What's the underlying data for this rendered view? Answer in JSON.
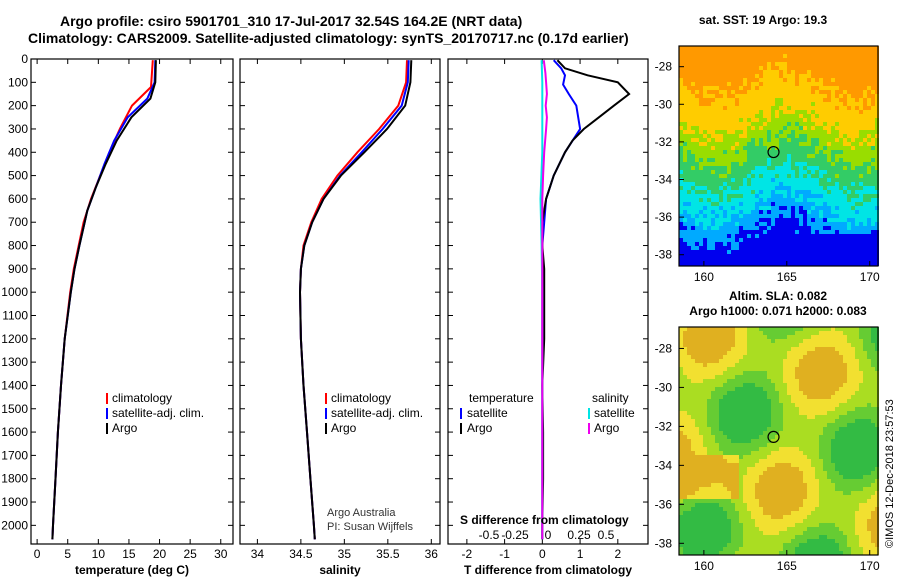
{
  "header": {
    "line1": "Argo profile: csiro 5901701_310 17-Jul-2017 32.54S 164.2E (NRT data)",
    "line2": "Climatology: CARS2009. Satellite-adjusted climatology: synTS_20170717.nc (0.17d earlier)"
  },
  "credit": "©IMOS 12-Dec-2018 23:57:53",
  "colors": {
    "climatology": "#ff0000",
    "satellite": "#0000ff",
    "argo": "#000000",
    "sat_salinity": "#00e5e5",
    "argo_salinity": "#ee00ee"
  },
  "chart_data": [
    {
      "type": "line",
      "name": "temperature",
      "xlabel": "temperature (deg C)",
      "xlim": [
        -1,
        32
      ],
      "xticks": [
        0,
        5,
        10,
        15,
        20,
        25,
        30
      ],
      "xticklabels": [
        "0",
        "5",
        "10",
        "15",
        "20",
        "25",
        "30"
      ],
      "ylim": [
        2080,
        0
      ],
      "yticks": [
        0,
        100,
        200,
        300,
        400,
        500,
        600,
        700,
        800,
        900,
        1000,
        1100,
        1200,
        1300,
        1400,
        1500,
        1600,
        1700,
        1800,
        1900,
        2000
      ],
      "legend": [
        "climatology",
        "satellite-adj. clim.",
        "Argo"
      ],
      "series": [
        {
          "name": "climatology",
          "color": "#ff0000",
          "depth": [
            5,
            120,
            200,
            300,
            400,
            500,
            600,
            700,
            800,
            900,
            1000,
            1200,
            1400,
            1600,
            1800,
            2000,
            2060
          ],
          "values": [
            18.9,
            18.6,
            15.5,
            13.5,
            11.8,
            10.3,
            8.8,
            7.6,
            6.8,
            6.0,
            5.4,
            4.5,
            3.9,
            3.4,
            3.0,
            2.6,
            2.5
          ]
        },
        {
          "name": "satellite-adj. clim.",
          "color": "#0000ff",
          "depth": [
            5,
            100,
            170,
            250,
            350,
            450,
            550,
            650,
            800,
            900,
            1000,
            1200,
            1400,
            1600,
            1800,
            2000,
            2060
          ],
          "values": [
            19.3,
            19.2,
            18.0,
            14.8,
            12.6,
            11.0,
            9.6,
            8.2,
            6.9,
            6.1,
            5.5,
            4.5,
            3.9,
            3.4,
            3.0,
            2.6,
            2.5
          ]
        },
        {
          "name": "Argo",
          "color": "#000000",
          "depth": [
            5,
            100,
            170,
            250,
            350,
            450,
            550,
            650,
            800,
            900,
            1000,
            1200,
            1400,
            1600,
            1800,
            2000,
            2060
          ],
          "values": [
            19.4,
            19.3,
            18.5,
            15.4,
            13.0,
            11.2,
            9.6,
            8.2,
            6.9,
            6.1,
            5.5,
            4.5,
            3.9,
            3.4,
            3.0,
            2.6,
            2.5
          ]
        }
      ]
    },
    {
      "type": "line",
      "name": "salinity",
      "xlabel": "salinity",
      "xlim": [
        33.8,
        36.1
      ],
      "xticks": [
        34,
        34.5,
        35,
        35.5,
        36
      ],
      "xticklabels": [
        "34",
        "34.5",
        "35",
        "35.5",
        "36"
      ],
      "ylim": [
        2080,
        0
      ],
      "legend": [
        "climatology",
        "satellite-adj. clim.",
        "Argo"
      ],
      "annotation": [
        "Argo Australia",
        "PI: Susan Wijffels"
      ],
      "series": [
        {
          "name": "climatology",
          "color": "#ff0000",
          "depth": [
            5,
            100,
            200,
            300,
            400,
            500,
            600,
            700,
            800,
            900,
            1000,
            1200,
            1400,
            1600,
            1800,
            2000,
            2060
          ],
          "values": [
            35.72,
            35.71,
            35.62,
            35.4,
            35.15,
            34.92,
            34.74,
            34.62,
            34.53,
            34.5,
            34.49,
            34.5,
            34.53,
            34.57,
            34.61,
            34.65,
            34.66
          ]
        },
        {
          "name": "satellite-adj. clim.",
          "color": "#0000ff",
          "depth": [
            5,
            100,
            200,
            300,
            400,
            500,
            600,
            700,
            800,
            900,
            1000,
            1200,
            1400,
            1600,
            1800,
            2000,
            2060
          ],
          "values": [
            35.74,
            35.73,
            35.66,
            35.44,
            35.2,
            34.95,
            34.76,
            34.63,
            34.54,
            34.5,
            34.49,
            34.5,
            34.53,
            34.57,
            34.61,
            34.65,
            34.66
          ]
        },
        {
          "name": "Argo",
          "color": "#000000",
          "depth": [
            5,
            100,
            200,
            300,
            400,
            500,
            600,
            700,
            800,
            900,
            1000,
            1200,
            1400,
            1600,
            1800,
            2000,
            2060
          ],
          "values": [
            35.77,
            35.76,
            35.7,
            35.49,
            35.23,
            34.96,
            34.76,
            34.63,
            34.54,
            34.5,
            34.49,
            34.5,
            34.53,
            34.57,
            34.61,
            34.65,
            34.66
          ]
        }
      ]
    },
    {
      "type": "line",
      "name": "differences",
      "xlabel": "T difference from climatology",
      "xlim": [
        -2.5,
        2.8
      ],
      "xticks": [
        -2,
        -1,
        0,
        1,
        2
      ],
      "xticklabels": [
        "-2",
        "-1",
        "0",
        "1",
        "2"
      ],
      "top_axis_label": "S difference from climatology",
      "s_ticklabels": [
        "-0.5",
        "-0.25",
        "0",
        "0.25",
        "0.5"
      ],
      "ylim": [
        2080,
        0
      ],
      "legend_temperature": [
        "temperature",
        "satellite",
        "Argo"
      ],
      "legend_salinity": [
        "salinity",
        "satellite",
        "Argo"
      ],
      "series": [
        {
          "name": "T satellite",
          "color": "#0000ff",
          "depth": [
            5,
            40,
            70,
            110,
            150,
            200,
            300,
            400,
            500,
            600,
            800,
            1000,
            1400,
            1800,
            2060
          ],
          "values": [
            0.3,
            0.5,
            0.6,
            0.55,
            0.7,
            0.9,
            1.0,
            0.6,
            0.3,
            0.1,
            0.0,
            0.0,
            0.0,
            0.0,
            0.0
          ]
        },
        {
          "name": "T Argo",
          "color": "#000000",
          "depth": [
            5,
            40,
            70,
            100,
            150,
            200,
            250,
            300,
            350,
            400,
            500,
            600,
            700,
            800,
            900,
            1000,
            1200,
            1400,
            1600,
            1800,
            2000,
            2060
          ],
          "values": [
            0.4,
            0.6,
            1.2,
            2.0,
            2.3,
            1.9,
            1.5,
            1.1,
            0.8,
            0.6,
            0.3,
            0.1,
            0.0,
            0.0,
            0.05,
            0.05,
            0.05,
            0.0,
            0.02,
            0.02,
            0.0,
            0.0
          ]
        },
        {
          "name": "S satellite",
          "color": "#00e5e5",
          "depth": [
            5,
            100,
            200,
            300,
            400,
            600,
            800,
            1000,
            1200,
            1400,
            1600,
            2060
          ],
          "values": [
            -0.02,
            0.0,
            0.0,
            0.0,
            0.0,
            -0.05,
            -0.02,
            0.0,
            0.0,
            0.0,
            0.0,
            0.0
          ]
        },
        {
          "name": "S Argo",
          "color": "#ee00ee",
          "depth": [
            5,
            60,
            100,
            150,
            200,
            250,
            300,
            400,
            500,
            600,
            2060
          ],
          "values": [
            0.04,
            0.08,
            0.1,
            0.12,
            0.09,
            0.12,
            0.1,
            0.05,
            0.02,
            0.0,
            0.0
          ]
        }
      ]
    },
    {
      "type": "heatmap",
      "name": "sst map",
      "title": "sat. SST: 19 Argo: 19.3",
      "xticks": [
        160,
        165,
        170
      ],
      "xticklabels": [
        "160",
        "165",
        "170"
      ],
      "yticks": [
        -28,
        -30,
        -32,
        -34,
        -36,
        -38
      ],
      "yticklabels": [
        "-28",
        "-30",
        "-32",
        "-34",
        "-36",
        "-38"
      ],
      "xlim": [
        158.5,
        170.5
      ],
      "ylim": [
        -38.6,
        -26.9
      ],
      "argo_position": [
        164.2,
        -32.54
      ]
    },
    {
      "type": "heatmap",
      "name": "sla map",
      "title": "Altim. SLA: 0.082",
      "subtitle": "Argo h1000: 0.071 h2000: 0.083",
      "xticks": [
        160,
        165,
        170
      ],
      "xticklabels": [
        "160",
        "165",
        "170"
      ],
      "yticks": [
        -28,
        -30,
        -32,
        -34,
        -36,
        -38
      ],
      "yticklabels": [
        "-28",
        "-30",
        "-32",
        "-34",
        "-36",
        "-38"
      ],
      "xlim": [
        158.5,
        170.5
      ],
      "ylim": [
        -38.6,
        -26.9
      ],
      "argo_position": [
        164.2,
        -32.54
      ]
    }
  ]
}
